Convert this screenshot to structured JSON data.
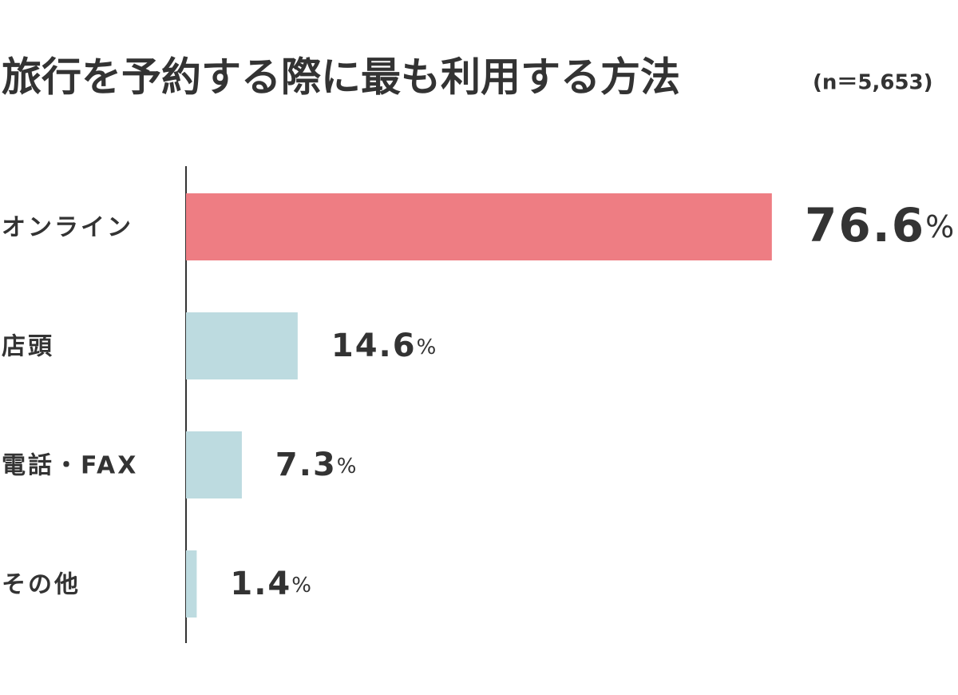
{
  "chart_data": {
    "type": "bar",
    "orientation": "horizontal",
    "title": "旅行を予約する際に最も利用する方法",
    "subtitle": "(n＝5,653)",
    "categories": [
      "オンライン",
      "店頭",
      "電話・FAX",
      "その他"
    ],
    "values": [
      76.6,
      14.6,
      7.3,
      1.4
    ],
    "value_labels": [
      "76.6%",
      "14.6%",
      "7.3%",
      "1.4%"
    ],
    "colors": [
      "#ee7d83",
      "#bddbe0",
      "#bddbe0",
      "#bddbe0"
    ],
    "xlim": [
      0,
      100
    ]
  }
}
